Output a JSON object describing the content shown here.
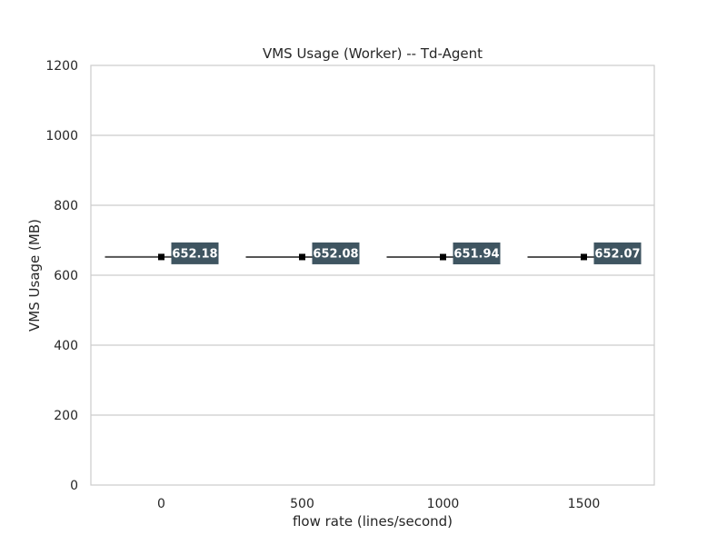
{
  "chart_data": {
    "type": "box",
    "title": "VMS Usage (Worker) -- Td-Agent",
    "xlabel": "flow rate (lines/second)",
    "ylabel": "VMS Usage (MB)",
    "categories": [
      "0",
      "500",
      "1000",
      "1500"
    ],
    "values": [
      652.18,
      652.08,
      651.94,
      652.07
    ],
    "value_labels": [
      "652.18",
      "652.08",
      "651.94",
      "652.07"
    ],
    "ylim": [
      0,
      1200
    ],
    "yticks": [
      0,
      200,
      400,
      600,
      800,
      1000,
      1200
    ],
    "ytick_labels": [
      "0",
      "200",
      "400",
      "600",
      "800",
      "1000",
      "1200"
    ],
    "grid": true,
    "colors": {
      "box_line": "#555555",
      "mean_marker": "#000000",
      "label_bg": "#3f5561",
      "label_text": "#ffffff",
      "grid": "#cccccc",
      "frame": "#cccccc"
    }
  }
}
